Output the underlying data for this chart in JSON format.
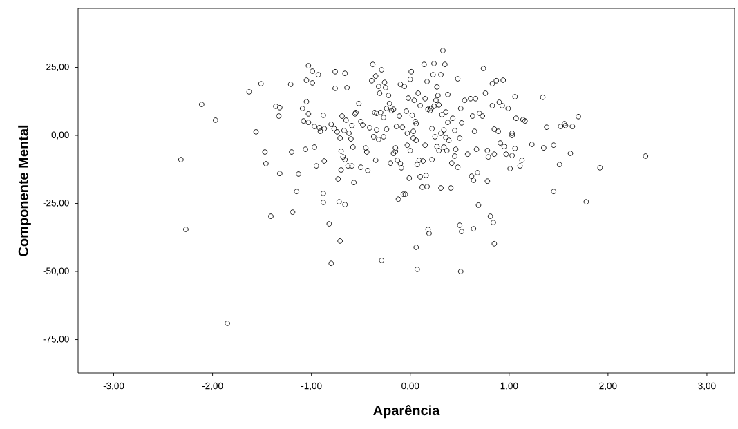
{
  "chart_data": {
    "type": "scatter",
    "xlabel": "Aparência",
    "ylabel": "Componente Mental",
    "xlim": [
      -3.36,
      3.28
    ],
    "ylim": [
      -87.3,
      46.7
    ],
    "xticks": [
      {
        "value": -3,
        "label": "-3,00"
      },
      {
        "value": -2,
        "label": "-2,00"
      },
      {
        "value": -1,
        "label": "-1,00"
      },
      {
        "value": 0,
        "label": "0,00"
      },
      {
        "value": 1,
        "label": "1,00"
      },
      {
        "value": 2,
        "label": "2,00"
      },
      {
        "value": 3,
        "label": "3,00"
      }
    ],
    "yticks": [
      {
        "value": -75,
        "label": "-75,00"
      },
      {
        "value": -50,
        "label": "-50,00"
      },
      {
        "value": -25,
        "label": "-25,00"
      },
      {
        "value": 0,
        "label": "0,00"
      },
      {
        "value": 25,
        "label": "25,00"
      }
    ],
    "marker": "circle",
    "series": [
      {
        "color": "#000000",
        "x": [
          -2.32,
          -2.27,
          -2.11,
          -1.97,
          -1.85,
          -1.63,
          -1.56,
          -1.51,
          -1.47,
          -1.46,
          -1.41,
          -1.36,
          -1.33,
          -1.32,
          -1.32,
          -1.21,
          -1.2,
          -1.19,
          -1.15,
          -1.13,
          -1.09,
          -1.08,
          -1.06,
          -1.05,
          -1.05,
          -1.03,
          -1.03,
          -1.03,
          -0.99,
          -0.99,
          -0.97,
          -0.97,
          -0.95,
          -0.93,
          -0.92,
          -0.91,
          -0.88,
          -0.88,
          -0.88,
          -0.87,
          -0.87,
          -0.82,
          -0.8,
          -0.8,
          -0.77,
          -0.76,
          -0.74,
          -0.76,
          -0.73,
          -0.72,
          -0.71,
          -0.71,
          -0.7,
          -0.7,
          -0.69,
          -0.68,
          -0.67,
          -0.66,
          -0.66,
          -0.66,
          -0.65,
          -0.64,
          -0.63,
          -0.62,
          -0.6,
          -0.59,
          -0.59,
          -0.58,
          -0.57,
          -0.56,
          -0.55,
          -0.52,
          -0.5,
          -0.5,
          -0.48,
          -0.45,
          -0.44,
          -0.43,
          -0.41,
          -0.39,
          -0.38,
          -0.37,
          -0.36,
          -0.35,
          -0.35,
          -0.34,
          -0.34,
          -0.32,
          -0.32,
          -0.31,
          -0.3,
          -0.29,
          -0.29,
          -0.27,
          -0.27,
          -0.26,
          -0.25,
          -0.24,
          -0.24,
          -0.22,
          -0.21,
          -0.2,
          -0.19,
          -0.17,
          -0.17,
          -0.15,
          -0.15,
          -0.14,
          -0.13,
          -0.12,
          -0.11,
          -0.1,
          -0.1,
          -0.09,
          -0.08,
          -0.07,
          -0.06,
          -0.05,
          -0.04,
          -0.03,
          -0.03,
          -0.02,
          -0.01,
          0.0,
          0.0,
          0.01,
          0.02,
          0.03,
          0.03,
          0.04,
          0.05,
          0.06,
          0.06,
          0.06,
          0.07,
          0.07,
          0.08,
          0.09,
          0.1,
          0.1,
          0.12,
          0.13,
          0.14,
          0.15,
          0.15,
          0.16,
          0.17,
          0.17,
          0.18,
          0.18,
          0.19,
          0.2,
          0.21,
          0.22,
          0.22,
          0.23,
          0.24,
          0.24,
          0.25,
          0.26,
          0.27,
          0.27,
          0.28,
          0.29,
          0.29,
          0.31,
          0.31,
          0.31,
          0.32,
          0.33,
          0.34,
          0.34,
          0.35,
          0.36,
          0.36,
          0.37,
          0.38,
          0.38,
          0.39,
          0.41,
          0.42,
          0.43,
          0.45,
          0.45,
          0.46,
          0.48,
          0.48,
          0.5,
          0.5,
          0.51,
          0.51,
          0.52,
          0.52,
          0.55,
          0.58,
          0.61,
          0.62,
          0.63,
          0.64,
          0.64,
          0.65,
          0.66,
          0.67,
          0.68,
          0.69,
          0.7,
          0.73,
          0.74,
          0.76,
          0.78,
          0.78,
          0.79,
          0.81,
          0.83,
          0.83,
          0.84,
          0.85,
          0.85,
          0.85,
          0.87,
          0.89,
          0.9,
          0.91,
          0.93,
          0.94,
          0.95,
          0.97,
          0.99,
          1.01,
          1.03,
          1.03,
          1.03,
          1.06,
          1.06,
          1.07,
          1.11,
          1.13,
          1.14,
          1.16,
          1.23,
          1.34,
          1.35,
          1.38,
          1.45,
          1.45,
          1.51,
          1.52,
          1.56,
          1.57,
          1.62,
          1.64,
          1.7,
          1.78,
          1.92,
          2.38
        ],
        "values": [
          -8.9,
          -34.5,
          11.4,
          5.6,
          -69,
          16,
          1.3,
          19,
          -6.1,
          -10.4,
          -29.7,
          10.7,
          7.1,
          10.2,
          -14,
          18.8,
          -6.1,
          -28.2,
          -20.6,
          -14.2,
          9.9,
          5.3,
          -5.1,
          20.3,
          12.4,
          25.6,
          7.9,
          4.8,
          23.6,
          19.3,
          3.3,
          -4.3,
          -11.2,
          22.3,
          2.8,
          1.5,
          7.4,
          -21.3,
          -24.6,
          2.5,
          -9.4,
          -32.5,
          4.1,
          -47,
          2.5,
          17.3,
          1.3,
          23.4,
          -16,
          -24.4,
          -38.8,
          -1,
          -12.7,
          -5.8,
          7.1,
          -7.9,
          1.8,
          -8.9,
          22.8,
          -25.4,
          5.6,
          17.5,
          -11.2,
          0.8,
          -1.3,
          3.6,
          -11.2,
          -4.3,
          -17.3,
          7.9,
          8.4,
          11.7,
          5.1,
          -11.7,
          3.8,
          -4.6,
          -6.1,
          -12.9,
          2.8,
          20.1,
          26.1,
          -0.5,
          8.4,
          21.8,
          -9.1,
          2,
          8.1,
          -1.5,
          18,
          15.5,
          8.4,
          24.1,
          -45.9,
          -0.5,
          6.6,
          19.5,
          17.5,
          9.9,
          2.3,
          14.7,
          11.7,
          -10.2,
          9.1,
          -6.6,
          9.6,
          -4.6,
          -5.8,
          3.3,
          -9.1,
          -23.4,
          7.1,
          18.8,
          -10.4,
          -11.9,
          3,
          -21.6,
          18,
          -21.6,
          8.9,
          0.8,
          -3.6,
          13.7,
          -15.7,
          20.6,
          -5.6,
          23.4,
          7.4,
          1.5,
          -1,
          12.9,
          5.1,
          -1.8,
          4.3,
          -41.1,
          -49.2,
          -10.7,
          15.5,
          -9.1,
          10.9,
          -15.2,
          -19,
          -9.4,
          26.1,
          -3.6,
          13.5,
          -14.7,
          -18.8,
          19.8,
          9.6,
          -34.5,
          -36,
          9.1,
          9.9,
          2.5,
          -8.9,
          22.3,
          26.4,
          10.7,
          -0.5,
          12.9,
          -4.1,
          17.8,
          14.7,
          11.2,
          -5.6,
          22.3,
          0.8,
          -19.3,
          7.6,
          31.2,
          -4.3,
          2,
          26.1,
          8.6,
          -0.8,
          -5.6,
          4.8,
          15,
          -1.8,
          -19.3,
          -10.2,
          6.3,
          -7.6,
          1.8,
          -5.1,
          20.8,
          -11.7,
          -1,
          -33,
          9.9,
          -50,
          4.6,
          -35.3,
          12.9,
          -6.9,
          13.5,
          -15,
          7.1,
          -34.3,
          -16.5,
          1.5,
          13.5,
          -5.1,
          -13.7,
          -25.6,
          8.1,
          7.1,
          24.6,
          15.5,
          -16.8,
          -5.6,
          -7.9,
          -29.7,
          10.9,
          19,
          -32,
          -39.8,
          -6.9,
          2.3,
          20.1,
          1.5,
          12.2,
          -2.8,
          10.9,
          20.3,
          -4.1,
          -6.9,
          9.9,
          -12.2,
          -7.4,
          0.8,
          0,
          14.2,
          -4.8,
          6.3,
          -11.2,
          -9.1,
          5.8,
          5.3,
          -3.3,
          14,
          -4.6,
          3,
          -3.6,
          -20.6,
          -10.7,
          3.3,
          4.3,
          3.6,
          -6.6,
          3.3,
          6.9,
          -24.4,
          -11.9,
          -7.6
        ]
      }
    ]
  }
}
